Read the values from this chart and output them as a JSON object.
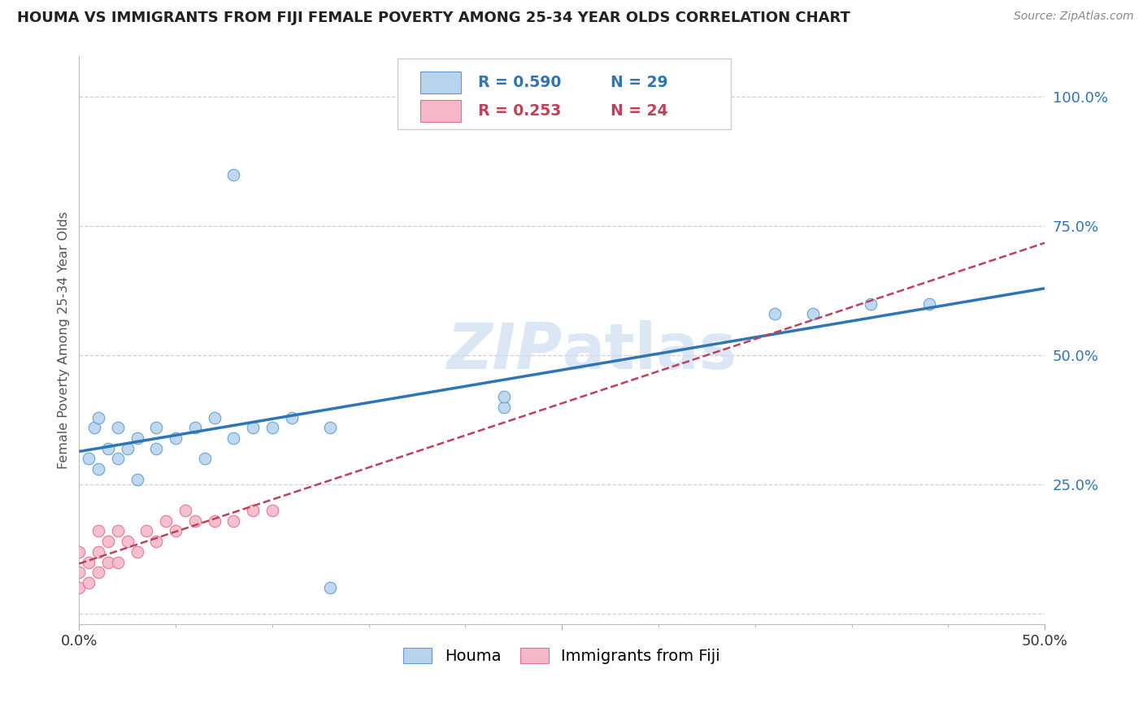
{
  "title": "HOUMA VS IMMIGRANTS FROM FIJI FEMALE POVERTY AMONG 25-34 YEAR OLDS CORRELATION CHART",
  "source": "Source: ZipAtlas.com",
  "ylabel": "Female Poverty Among 25-34 Year Olds",
  "xlim": [
    0.0,
    0.5
  ],
  "ylim": [
    -0.02,
    1.08
  ],
  "houma_R": 0.59,
  "houma_N": 29,
  "fiji_R": 0.253,
  "fiji_N": 24,
  "houma_color": "#b8d4ed",
  "houma_edge_color": "#5b9bd5",
  "houma_line_color": "#2e75b6",
  "fiji_color": "#f4b8c8",
  "fiji_edge_color": "#e07090",
  "fiji_line_color": "#c0405a",
  "watermark_color": "#ccddf0",
  "background_color": "#ffffff",
  "grid_color": "#d0d0d0",
  "ytick_color": "#2e75b6",
  "title_color": "#222222",
  "source_color": "#888888"
}
